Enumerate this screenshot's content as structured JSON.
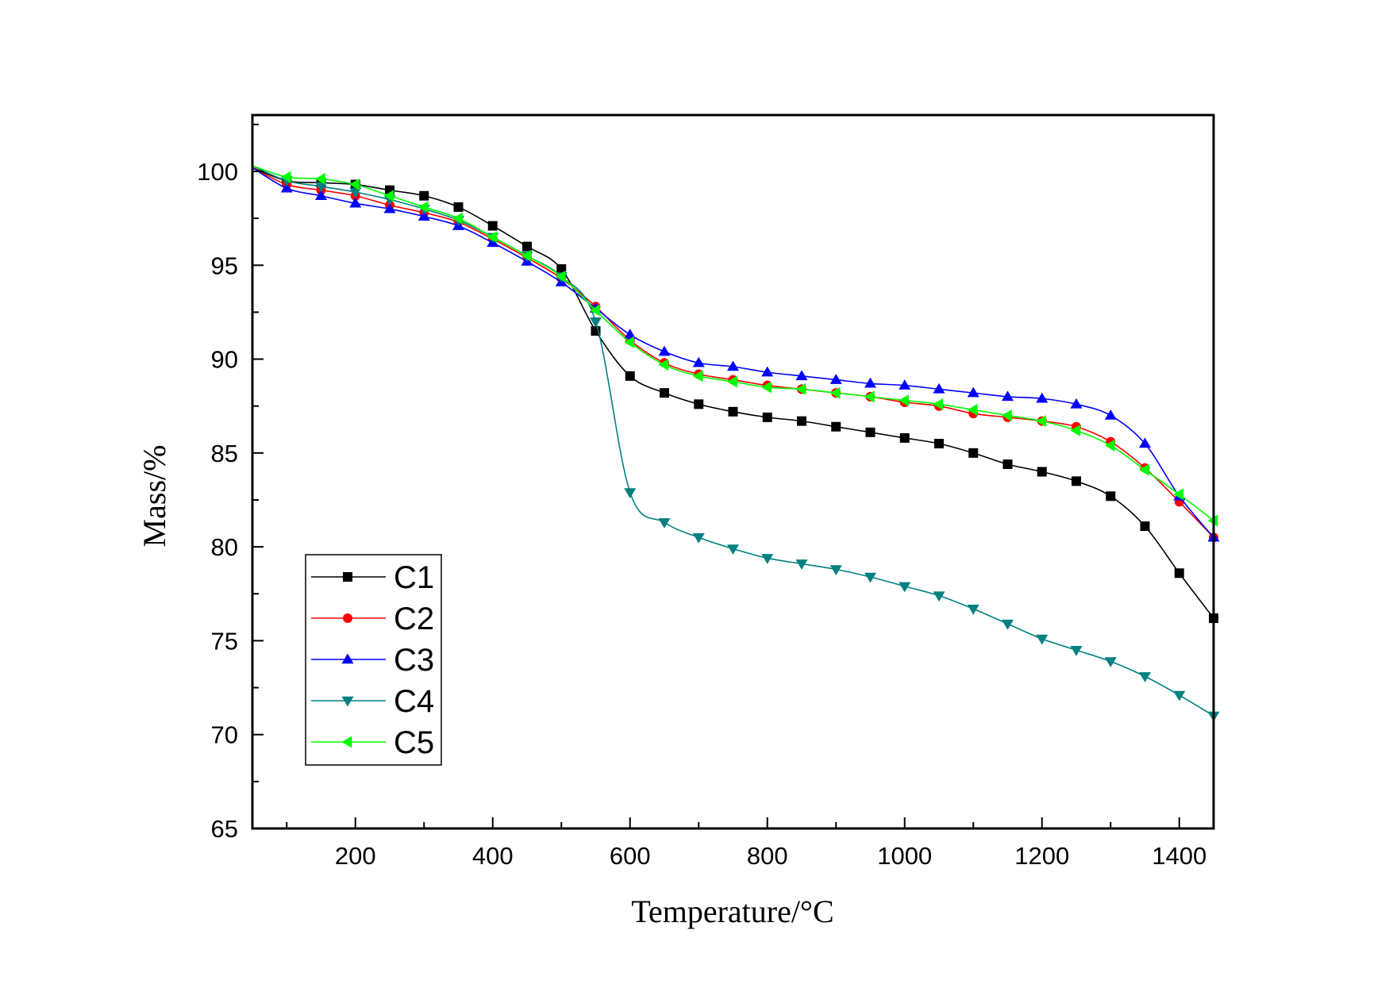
{
  "chart_data": {
    "type": "line",
    "title": "",
    "xlabel": "Temperature/°C",
    "ylabel": "Mass/%",
    "xlim": [
      50,
      1450
    ],
    "ylim": [
      65,
      103
    ],
    "xticks": [
      200,
      400,
      600,
      800,
      1000,
      1200,
      1400
    ],
    "yticks": [
      65,
      70,
      75,
      80,
      85,
      90,
      95,
      100
    ],
    "grid": false,
    "legend_position": "bottom-left",
    "x": [
      50,
      100,
      150,
      200,
      250,
      300,
      350,
      400,
      450,
      500,
      550,
      600,
      650,
      700,
      750,
      800,
      850,
      900,
      950,
      1000,
      1050,
      1100,
      1150,
      1200,
      1250,
      1300,
      1350,
      1400,
      1450
    ],
    "series": [
      {
        "name": "C1",
        "color": "#000000",
        "marker": "square",
        "values": [
          100.2,
          99.5,
          99.4,
          99.3,
          99.0,
          98.7,
          98.1,
          97.1,
          96.0,
          94.8,
          91.5,
          89.1,
          88.2,
          87.6,
          87.2,
          86.9,
          86.7,
          86.4,
          86.1,
          85.8,
          85.5,
          85.0,
          84.4,
          84.0,
          83.5,
          82.7,
          81.1,
          78.6,
          76.2
        ]
      },
      {
        "name": "C2",
        "color": "#ff0000",
        "marker": "circle",
        "values": [
          100.2,
          99.3,
          99.0,
          98.7,
          98.2,
          97.8,
          97.3,
          96.4,
          95.4,
          94.3,
          92.8,
          91.0,
          89.8,
          89.2,
          88.9,
          88.6,
          88.4,
          88.2,
          88.0,
          87.7,
          87.5,
          87.1,
          86.9,
          86.7,
          86.4,
          85.6,
          84.2,
          82.4,
          80.5
        ]
      },
      {
        "name": "C3",
        "color": "#0000ff",
        "marker": "triangle-up",
        "values": [
          100.2,
          99.1,
          98.7,
          98.3,
          98.0,
          97.6,
          97.1,
          96.2,
          95.2,
          94.1,
          92.7,
          91.3,
          90.4,
          89.8,
          89.6,
          89.3,
          89.1,
          88.9,
          88.7,
          88.6,
          88.4,
          88.2,
          88.0,
          87.9,
          87.6,
          87.0,
          85.5,
          82.7,
          80.5
        ]
      },
      {
        "name": "C4",
        "color": "#008080",
        "marker": "triangle-down",
        "values": [
          100.3,
          99.5,
          99.2,
          98.9,
          98.5,
          98.0,
          97.4,
          96.5,
          95.5,
          94.4,
          92.0,
          82.9,
          81.3,
          80.5,
          79.9,
          79.4,
          79.1,
          78.8,
          78.4,
          77.9,
          77.4,
          76.7,
          75.9,
          75.1,
          74.5,
          73.9,
          73.1,
          72.1,
          71.0
        ]
      },
      {
        "name": "C5",
        "color": "#00ff00",
        "marker": "triangle-left",
        "values": [
          100.3,
          99.7,
          99.6,
          99.3,
          98.7,
          98.1,
          97.5,
          96.5,
          95.5,
          94.4,
          92.6,
          90.9,
          89.7,
          89.1,
          88.8,
          88.5,
          88.4,
          88.2,
          88.0,
          87.8,
          87.6,
          87.3,
          87.0,
          86.7,
          86.2,
          85.4,
          84.1,
          82.8,
          81.4
        ]
      }
    ]
  }
}
